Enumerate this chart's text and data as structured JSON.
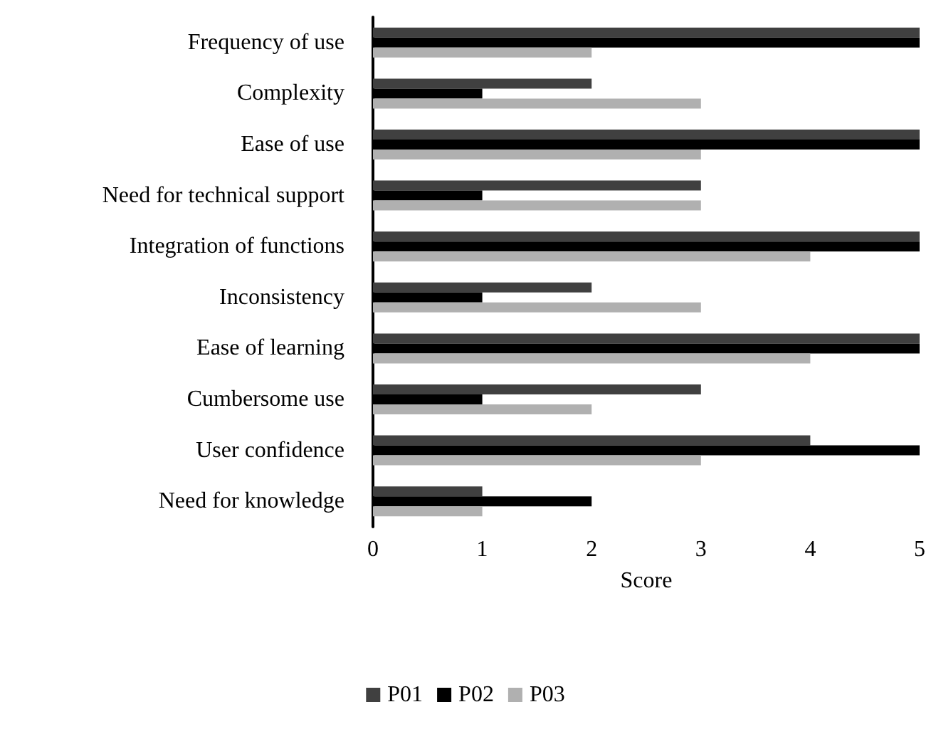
{
  "chart_data": {
    "type": "bar",
    "orientation": "horizontal",
    "xlabel": "Score",
    "categories": [
      "Frequency of use",
      "Complexity",
      "Ease of use",
      "Need for technical support",
      "Integration of functions",
      "Inconsistency",
      "Ease of learning",
      "Cumbersome use",
      "User confidence",
      "Need for knowledge"
    ],
    "series": [
      {
        "name": "P01",
        "color": "#404040",
        "values": [
          5,
          2,
          5,
          3,
          5,
          2,
          5,
          3,
          4,
          1
        ]
      },
      {
        "name": "P02",
        "color": "#000000",
        "values": [
          5,
          1,
          5,
          1,
          5,
          1,
          5,
          1,
          5,
          2
        ]
      },
      {
        "name": "P03",
        "color": "#b0b0b0",
        "values": [
          2,
          3,
          3,
          3,
          4,
          3,
          4,
          2,
          3,
          1
        ]
      }
    ],
    "xlim": [
      0,
      5
    ],
    "xticks": [
      0,
      1,
      2,
      3,
      4,
      5
    ],
    "grid": false,
    "legend": "bottom"
  }
}
